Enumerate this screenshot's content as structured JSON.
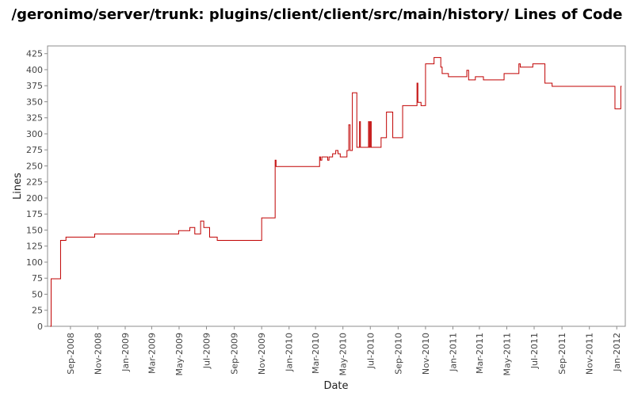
{
  "chart_data": {
    "type": "line",
    "title": "/geronimo/server/trunk: plugins/client/client/src/main/history/ Lines of Code",
    "xlabel": "Date",
    "ylabel": "Lines",
    "ylim": [
      0,
      437
    ],
    "xlim": [
      "2008-07-12",
      "2012-01-20"
    ],
    "grid": false,
    "legend": "none",
    "line_color": "#c00000",
    "y_ticks": [
      "0",
      "25",
      "50",
      "75",
      "100",
      "125",
      "150",
      "175",
      "200",
      "225",
      "250",
      "275",
      "300",
      "325",
      "350",
      "375",
      "400",
      "425"
    ],
    "x_ticks": [
      {
        "date": "2008-09-01",
        "label": "Sep-2008"
      },
      {
        "date": "2008-11-01",
        "label": "Nov-2008"
      },
      {
        "date": "2009-01-01",
        "label": "Jan-2009"
      },
      {
        "date": "2009-03-01",
        "label": "Mar-2009"
      },
      {
        "date": "2009-05-01",
        "label": "May-2009"
      },
      {
        "date": "2009-07-01",
        "label": "Jul-2009"
      },
      {
        "date": "2009-09-01",
        "label": "Sep-2009"
      },
      {
        "date": "2009-11-01",
        "label": "Nov-2009"
      },
      {
        "date": "2010-01-01",
        "label": "Jan-2010"
      },
      {
        "date": "2010-03-01",
        "label": "Mar-2010"
      },
      {
        "date": "2010-05-01",
        "label": "May-2010"
      },
      {
        "date": "2010-07-01",
        "label": "Jul-2010"
      },
      {
        "date": "2010-09-01",
        "label": "Sep-2010"
      },
      {
        "date": "2010-11-01",
        "label": "Nov-2010"
      },
      {
        "date": "2011-01-01",
        "label": "Jan-2011"
      },
      {
        "date": "2011-03-01",
        "label": "Mar-2011"
      },
      {
        "date": "2011-05-01",
        "label": "May-2011"
      },
      {
        "date": "2011-07-01",
        "label": "Jul-2011"
      },
      {
        "date": "2011-09-01",
        "label": "Sep-2011"
      },
      {
        "date": "2011-11-01",
        "label": "Nov-2011"
      },
      {
        "date": "2012-01-01",
        "label": "Jan-2012"
      }
    ],
    "series": [
      {
        "step": true,
        "points": [
          [
            "2008-07-18",
            0
          ],
          [
            "2008-07-20",
            74
          ],
          [
            "2008-08-10",
            134
          ],
          [
            "2008-08-22",
            139
          ],
          [
            "2008-10-25",
            144
          ],
          [
            "2009-04-30",
            149
          ],
          [
            "2009-05-25",
            154
          ],
          [
            "2009-06-05",
            144
          ],
          [
            "2009-06-18",
            164
          ],
          [
            "2009-06-25",
            154
          ],
          [
            "2009-07-08",
            139
          ],
          [
            "2009-07-25",
            134
          ],
          [
            "2009-11-01",
            169
          ],
          [
            "2009-12-01",
            259
          ],
          [
            "2009-12-03",
            249
          ],
          [
            "2010-03-10",
            264
          ],
          [
            "2010-03-12",
            259
          ],
          [
            "2010-03-15",
            264
          ],
          [
            "2010-03-28",
            259
          ],
          [
            "2010-03-31",
            264
          ],
          [
            "2010-04-08",
            269
          ],
          [
            "2010-04-15",
            274
          ],
          [
            "2010-04-20",
            269
          ],
          [
            "2010-04-25",
            264
          ],
          [
            "2010-05-10",
            274
          ],
          [
            "2010-05-14",
            314
          ],
          [
            "2010-05-17",
            274
          ],
          [
            "2010-05-22",
            364
          ],
          [
            "2010-06-01",
            279
          ],
          [
            "2010-06-07",
            319
          ],
          [
            "2010-06-09",
            279
          ],
          [
            "2010-06-27",
            319
          ],
          [
            "2010-06-29",
            279
          ],
          [
            "2010-07-01",
            319
          ],
          [
            "2010-07-03",
            279
          ],
          [
            "2010-07-25",
            294
          ],
          [
            "2010-08-06",
            334
          ],
          [
            "2010-08-20",
            294
          ],
          [
            "2010-09-11",
            344
          ],
          [
            "2010-10-13",
            379
          ],
          [
            "2010-10-15",
            349
          ],
          [
            "2010-10-22",
            344
          ],
          [
            "2010-11-01",
            409
          ],
          [
            "2010-11-20",
            419
          ],
          [
            "2010-12-05",
            404
          ],
          [
            "2010-12-08",
            394
          ],
          [
            "2010-12-22",
            389
          ],
          [
            "2011-02-01",
            399
          ],
          [
            "2011-02-05",
            384
          ],
          [
            "2011-02-20",
            389
          ],
          [
            "2011-03-10",
            384
          ],
          [
            "2011-04-25",
            394
          ],
          [
            "2011-05-28",
            409
          ],
          [
            "2011-05-31",
            404
          ],
          [
            "2011-06-28",
            409
          ],
          [
            "2011-07-25",
            379
          ],
          [
            "2011-08-10",
            374
          ],
          [
            "2011-12-28",
            339
          ],
          [
            "2012-01-10",
            374
          ]
        ]
      }
    ]
  }
}
